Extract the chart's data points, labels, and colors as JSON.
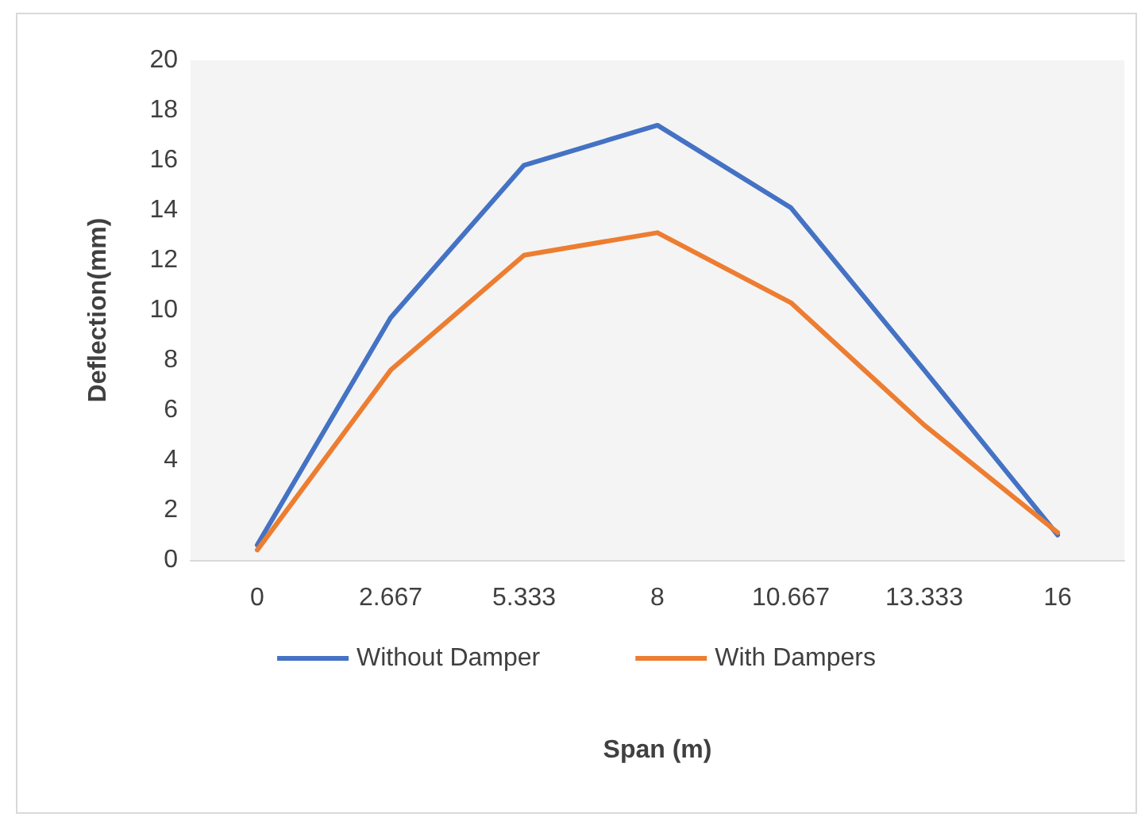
{
  "chart_data": {
    "type": "line",
    "xlabel": "Span (m)",
    "ylabel": "Deflection(mm)",
    "categories": [
      "0",
      "2.667",
      "5.333",
      "8",
      "10.667",
      "13.333",
      "16"
    ],
    "series": [
      {
        "name": "Without Damper",
        "color": "#4472c4",
        "values": [
          0.6,
          9.7,
          15.8,
          17.4,
          14.1,
          7.6,
          1.0
        ]
      },
      {
        "name": "With Dampers",
        "color": "#ed7d31",
        "values": [
          0.4,
          7.6,
          12.2,
          13.1,
          10.3,
          5.4,
          1.1
        ]
      }
    ],
    "ylim": [
      0,
      20
    ],
    "yticks": [
      0,
      2,
      4,
      6,
      8,
      10,
      12,
      14,
      16,
      18,
      20
    ],
    "legend": "bottom",
    "marker": "none",
    "line_style": "solid"
  }
}
